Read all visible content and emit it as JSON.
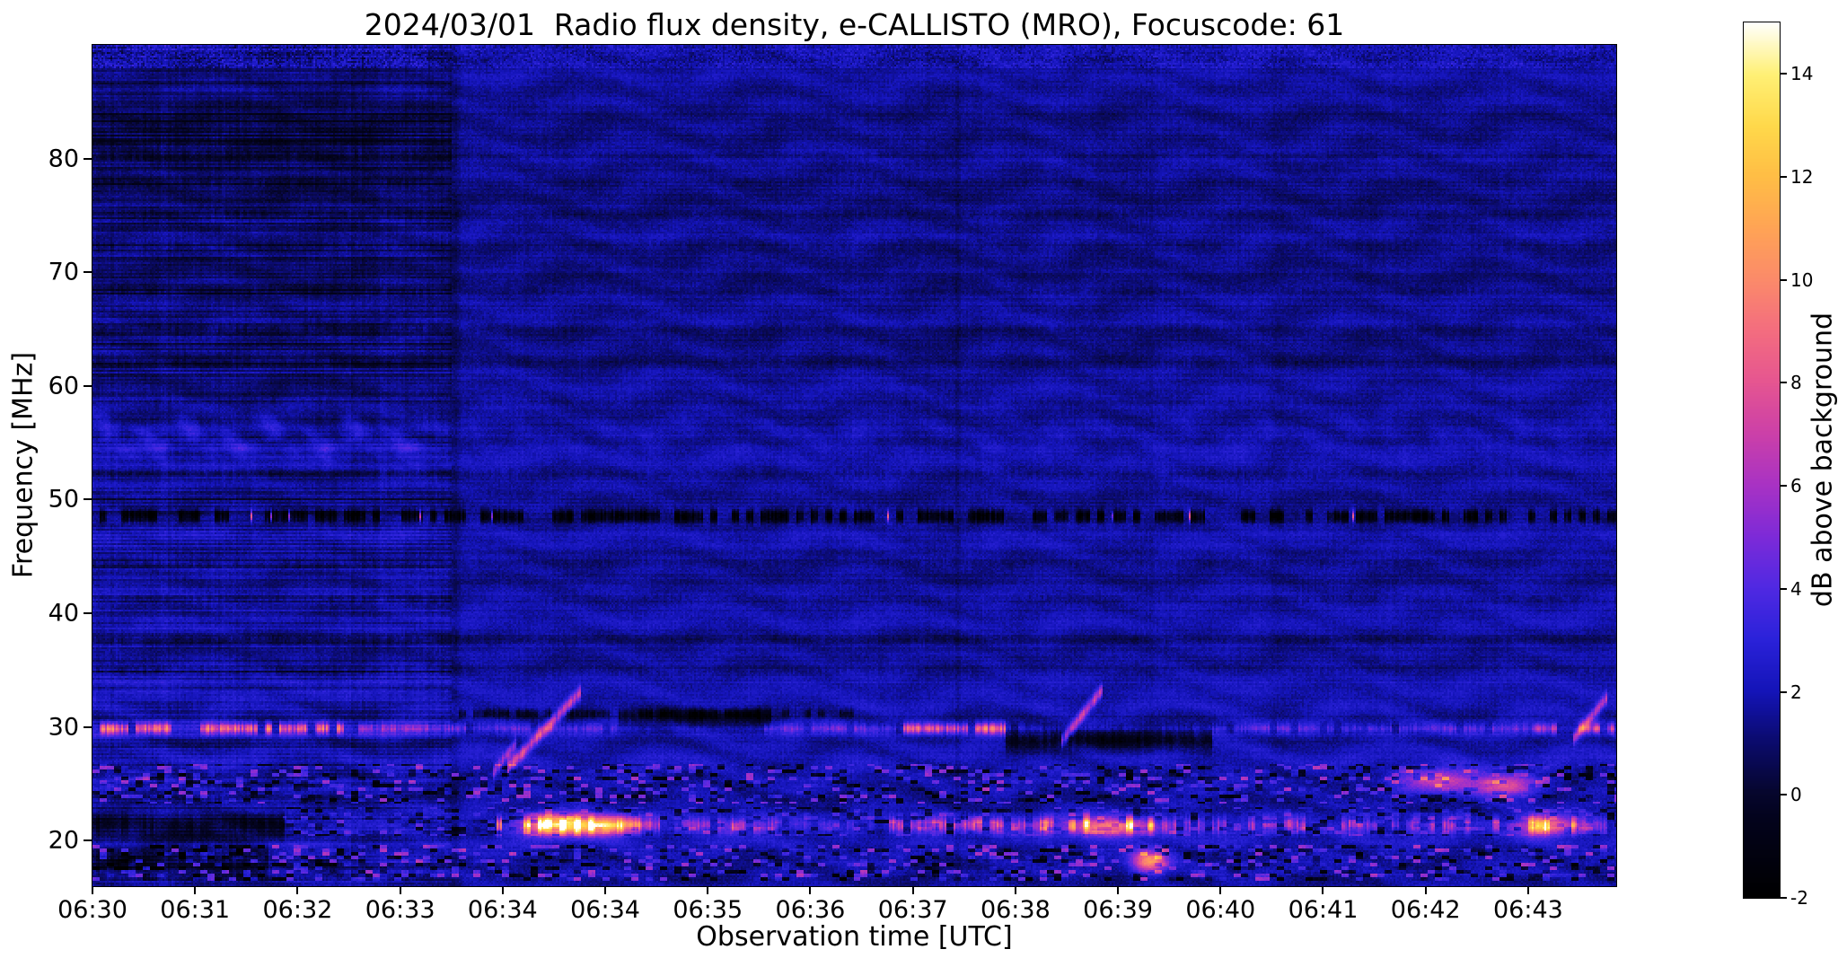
{
  "chart_data": {
    "type": "heatmap",
    "title": "2024/03/01  Radio flux density, e-CALLISTO (MRO), Focuscode: 61",
    "xlabel": "Observation time [UTC]",
    "ylabel": "Frequency [MHz]",
    "x_tick_labels": [
      "06:30",
      "06:31",
      "06:32",
      "06:33",
      "06:34",
      "06:34",
      "06:35",
      "06:36",
      "06:37",
      "06:38",
      "06:39",
      "06:40",
      "06:41",
      "06:42",
      "06:43"
    ],
    "y_ticks": [
      20,
      30,
      40,
      50,
      60,
      70,
      80
    ],
    "freq_range_mhz": [
      16,
      90
    ],
    "time_range_utc": [
      "06:30",
      "06:44"
    ],
    "grid": false,
    "background_level_db": 1.7,
    "colorbar": {
      "label": "dB above background",
      "ticks": [
        -2,
        0,
        2,
        4,
        6,
        8,
        10,
        12,
        14
      ],
      "vmin": -2,
      "vmax": 15,
      "position": "right"
    },
    "colormap_stops": [
      [
        0.0,
        "#000000"
      ],
      [
        0.09,
        "#03031d"
      ],
      [
        0.12,
        "#06062e"
      ],
      [
        0.18,
        "#0b0b70"
      ],
      [
        0.235,
        "#1414b8"
      ],
      [
        0.295,
        "#2b22da"
      ],
      [
        0.355,
        "#5129e2"
      ],
      [
        0.41,
        "#7c2ad8"
      ],
      [
        0.47,
        "#a832c4"
      ],
      [
        0.53,
        "#cc40a8"
      ],
      [
        0.59,
        "#e65690"
      ],
      [
        0.65,
        "#f46e7e"
      ],
      [
        0.705,
        "#fb8a6a"
      ],
      [
        0.765,
        "#ffa455"
      ],
      [
        0.825,
        "#ffbe45"
      ],
      [
        0.88,
        "#ffd84a"
      ],
      [
        0.94,
        "#fff075"
      ],
      [
        1.0,
        "#ffffff"
      ]
    ],
    "left_segment": {
      "t_end": 0.235,
      "upper_dim": 0.35,
      "note": "06:30-06:33.2 shows stronger horizontal channel striping and darker 60-88 MHz region"
    },
    "wisp": {
      "freq": 55.4,
      "t_end": 0.22,
      "amp": 1.5,
      "amp_after": 0.45
    },
    "top_edge": {
      "freq_min": 88.1,
      "amp": 1.6
    },
    "rfi_line_freqs": [
      80.3,
      77.9,
      75.2,
      72.4,
      68.4,
      65.1,
      62.1,
      58.7,
      52.3,
      44.3,
      41.2,
      37.6,
      34.9
    ],
    "features": [
      {
        "kind": "hline",
        "name": "bright-rfi-line-29.8MHz",
        "freq": 29.8,
        "width": 0.34,
        "dash": 0.18,
        "segments": [
          [
            0,
            0.17,
            6.8
          ],
          [
            0.17,
            0.25,
            3.2
          ],
          [
            0.25,
            0.345,
            1.8
          ],
          [
            0.345,
            0.44,
            0.6
          ],
          [
            0.44,
            0.53,
            2.2
          ],
          [
            0.53,
            0.6,
            6.2
          ],
          [
            0.6,
            0.75,
            1.2
          ],
          [
            0.75,
            0.945,
            2.0
          ],
          [
            0.945,
            1.001,
            4.6
          ]
        ]
      },
      {
        "kind": "hline",
        "name": "dark-absorption-line-48.5MHz",
        "freq": 48.5,
        "width": 0.38,
        "dash": 0.35,
        "sparkle": 0.988,
        "segments": [
          [
            0,
            1.001,
            -3.1
          ]
        ]
      },
      {
        "kind": "hline",
        "name": "dark-dashes-31MHz",
        "freq": 31.1,
        "width": 0.28,
        "dash": 0.45,
        "segments": [
          [
            0.24,
            0.5,
            -1.8
          ]
        ]
      },
      {
        "kind": "hline",
        "name": "bright-dashes-21MHz",
        "freq": 21.3,
        "width": 0.5,
        "dash": 0.42,
        "segments": [
          [
            0.265,
            0.36,
            6.0
          ],
          [
            0.36,
            0.45,
            3.8
          ],
          [
            0.45,
            0.52,
            1.2
          ],
          [
            0.52,
            0.625,
            4.6
          ],
          [
            0.625,
            0.7,
            6.0
          ],
          [
            0.7,
            0.93,
            3.4
          ],
          [
            0.93,
            0.975,
            6.2
          ],
          [
            0.975,
            1.001,
            2.8
          ]
        ]
      },
      {
        "kind": "band_dark",
        "name": "black-band-21MHz-start",
        "freq": 21.3,
        "width": 0.75,
        "t0": 0,
        "t1": 0.125,
        "depth": 3.0
      },
      {
        "kind": "band_dark",
        "name": "black-band-18MHz-start",
        "freq": 18.2,
        "width": 1.0,
        "t0": 0,
        "t1": 0.115,
        "depth": 2.2
      },
      {
        "kind": "band_dark",
        "name": "black-band-31MHz-0634",
        "freq": 30.9,
        "width": 0.55,
        "t0": 0.345,
        "t1": 0.445,
        "depth": 2.4
      },
      {
        "kind": "band_dark",
        "name": "black-band-29MHz-0638",
        "freq": 28.9,
        "width": 0.75,
        "t0": 0.6,
        "t1": 0.735,
        "depth": 2.8
      },
      {
        "kind": "band_dark",
        "name": "dark-upper-stripes-left",
        "freq": 81.8,
        "width": 2.2,
        "t0": 0,
        "t1": 0.235,
        "depth": 0.9
      },
      {
        "kind": "speckle",
        "name": "speckle-band-23-27MHz",
        "f0": 23.2,
        "f1": 26.6,
        "t0": 0,
        "t1": 1,
        "pos": 4.0,
        "neg": 3.0
      },
      {
        "kind": "speckle",
        "name": "speckle-band-16-20MHz",
        "f0": 16.4,
        "f1": 19.6,
        "t0": 0,
        "t1": 1,
        "pos": 4.2,
        "neg": 3.2
      },
      {
        "kind": "speckle",
        "name": "speckle-band-20-23MHz",
        "f0": 20.3,
        "f1": 22.8,
        "t0": 0.125,
        "t1": 1,
        "pos": 2.2,
        "neg": 2.6
      },
      {
        "kind": "blob",
        "name": "bright-orange-blob-0634",
        "t": 0.308,
        "freq": 21.4,
        "dt": 0.016,
        "df": 0.65,
        "amp": 11.5
      },
      {
        "kind": "blob",
        "name": "bright-orange-blob-0635",
        "t": 0.338,
        "freq": 21.2,
        "dt": 0.01,
        "df": 0.55,
        "amp": 8.5
      },
      {
        "kind": "blob",
        "name": "pink-blob-0639-21MHz",
        "t": 0.667,
        "freq": 21.1,
        "dt": 0.018,
        "df": 0.6,
        "amp": 7.5
      },
      {
        "kind": "blob",
        "name": "pink-spike-0639-18MHz",
        "t": 0.694,
        "freq": 18.1,
        "dt": 0.008,
        "df": 0.7,
        "amp": 9.0
      },
      {
        "kind": "blob",
        "name": "pink-cluster-0642-25MHz",
        "t": 0.885,
        "freq": 25.3,
        "dt": 0.02,
        "df": 0.75,
        "amp": 5.0
      },
      {
        "kind": "blob",
        "name": "pink-cluster-0642b-25MHz",
        "t": 0.928,
        "freq": 24.7,
        "dt": 0.014,
        "df": 0.65,
        "amp": 6.0
      },
      {
        "kind": "blob",
        "name": "pink-blob-0643-21MHz",
        "t": 0.955,
        "freq": 21.2,
        "dt": 0.012,
        "df": 0.6,
        "amp": 7.0
      },
      {
        "kind": "burst",
        "name": "drifting-burst-0634-precursor",
        "t0": 0.262,
        "t1": 0.278,
        "f0": 25.8,
        "f1": 28.6,
        "amp": 4.0,
        "width": 0.4
      },
      {
        "kind": "burst",
        "name": "drifting-burst-0634",
        "t0": 0.272,
        "t1": 0.32,
        "f0": 26.3,
        "f1": 33.0,
        "amp": 6.3,
        "width": 0.42
      },
      {
        "kind": "burst",
        "name": "drifting-burst-0639",
        "t0": 0.636,
        "t1": 0.663,
        "f0": 28.6,
        "f1": 33.2,
        "amp": 6.0,
        "width": 0.4
      },
      {
        "kind": "burst",
        "name": "drifting-burst-0643",
        "t0": 0.972,
        "t1": 0.995,
        "f0": 28.8,
        "f1": 32.6,
        "amp": 5.4,
        "width": 0.4
      },
      {
        "kind": "vline",
        "name": "segment-boundary-0633",
        "t": 0.237,
        "sigma": 0.002,
        "amp": -0.7
      },
      {
        "kind": "vline",
        "name": "faint-column-0638",
        "t": 0.568,
        "sigma": 0.0012,
        "amp": -0.45
      }
    ]
  }
}
